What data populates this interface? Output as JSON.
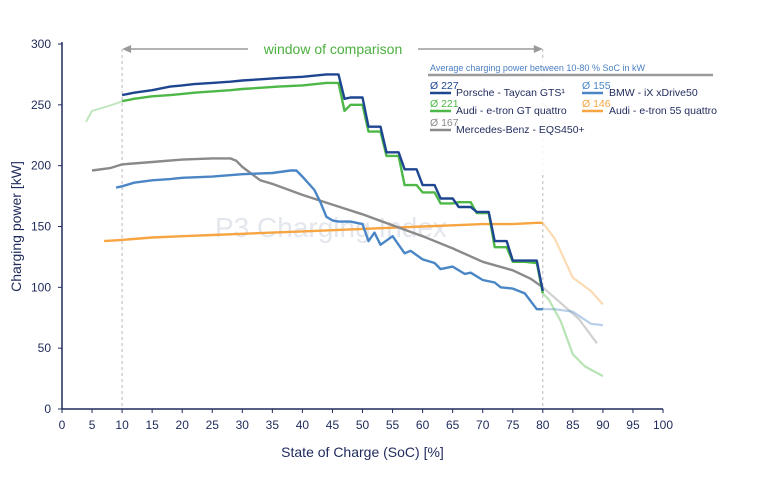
{
  "chart_data": {
    "type": "line",
    "xlabel": "State of Charge (SoC) [%]",
    "ylabel": "Charging power [kW]",
    "xlim": [
      0,
      100
    ],
    "ylim": [
      0,
      300
    ],
    "xticks": [
      0,
      5,
      10,
      15,
      20,
      25,
      30,
      35,
      40,
      45,
      50,
      55,
      60,
      65,
      70,
      75,
      80,
      85,
      90,
      95,
      100
    ],
    "yticks": [
      0,
      50,
      100,
      150,
      200,
      250,
      300
    ],
    "grid": false,
    "legend_placement": "top-right",
    "legend_header": "Average charging power between 10-80 % SoC in kW",
    "window_label": "window of comparison",
    "window_range": [
      10,
      80
    ],
    "watermark": "P3 Charging Index",
    "series": [
      {
        "name": "Porsche - Taycan GTS¹",
        "avg": "Ø 227",
        "color": "#1e4690",
        "x": [
          10,
          12,
          15,
          18,
          20,
          22,
          25,
          28,
          30,
          33,
          36,
          40,
          44,
          46,
          47,
          48,
          50,
          51,
          53,
          54,
          56,
          57,
          59,
          60,
          62,
          63,
          65,
          66,
          68,
          69,
          71,
          72,
          74,
          75,
          77,
          79,
          80
        ],
        "y": [
          258,
          260,
          262,
          265,
          266,
          267,
          268,
          269,
          270,
          271,
          272,
          273,
          275,
          275,
          255,
          256,
          256,
          232,
          232,
          211,
          211,
          197,
          197,
          184,
          184,
          173,
          173,
          166,
          166,
          162,
          162,
          138,
          138,
          122,
          122,
          122,
          97
        ]
      },
      {
        "name": "Audi - e-tron GT quattro",
        "avg": "Ø 221",
        "color": "#4db847",
        "x": [
          10,
          12,
          15,
          18,
          20,
          22,
          25,
          28,
          30,
          33,
          36,
          40,
          44,
          46,
          47,
          48,
          50,
          51,
          53,
          54,
          56,
          57,
          59,
          60,
          62,
          63,
          65,
          66,
          68,
          69,
          71,
          72,
          74,
          75,
          77,
          79,
          80,
          81,
          83,
          85,
          87,
          90
        ],
        "y": [
          253,
          255,
          257,
          258,
          259,
          260,
          261,
          262,
          263,
          264,
          265,
          266,
          268,
          268,
          245,
          250,
          250,
          228,
          228,
          208,
          208,
          184,
          184,
          178,
          178,
          169,
          169,
          170,
          170,
          161,
          161,
          133,
          133,
          121,
          121,
          120,
          95,
          90,
          72,
          45,
          35,
          27
        ]
      },
      {
        "name": "BMW - iX xDrive50",
        "avg": "Ø 155",
        "color": "#4a86c5",
        "x": [
          9,
          10,
          12,
          15,
          18,
          20,
          25,
          30,
          35,
          38,
          39,
          40,
          42,
          43,
          44,
          45,
          46,
          48,
          50,
          51,
          52,
          53,
          55,
          57,
          58,
          60,
          62,
          63,
          65,
          67,
          68,
          70,
          72,
          73,
          75,
          77,
          79,
          80,
          82,
          85,
          88,
          90
        ],
        "y": [
          182,
          183,
          186,
          188,
          189,
          190,
          191,
          193,
          194,
          196,
          196,
          191,
          180,
          170,
          158,
          155,
          154,
          154,
          152,
          138,
          145,
          135,
          142,
          128,
          130,
          123,
          120,
          115,
          117,
          111,
          112,
          106,
          104,
          100,
          99,
          95,
          82,
          82,
          82,
          80,
          70,
          69
        ]
      },
      {
        "name": "Audi - e-tron 55 quattro",
        "avg": "Ø 146",
        "color": "#f6a542",
        "x": [
          7,
          10,
          15,
          20,
          25,
          30,
          35,
          40,
          45,
          50,
          55,
          60,
          65,
          70,
          75,
          79,
          80,
          82,
          85,
          88,
          90
        ],
        "y": [
          138,
          139,
          141,
          142,
          143,
          144,
          145,
          146,
          147,
          148,
          149,
          150,
          151,
          152,
          152,
          153,
          153,
          140,
          108,
          97,
          86
        ]
      },
      {
        "name": "Mercedes-Benz - EQS450+",
        "avg": "Ø 167",
        "color": "#8a8a8a",
        "x": [
          5,
          8,
          10,
          15,
          20,
          25,
          28,
          29,
          30,
          33,
          35,
          40,
          45,
          50,
          55,
          60,
          65,
          70,
          75,
          78,
          80,
          83,
          86,
          89
        ],
        "y": [
          196,
          198,
          201,
          203,
          205,
          206,
          206,
          204,
          199,
          188,
          185,
          176,
          168,
          160,
          151,
          142,
          132,
          121,
          114,
          107,
          100,
          87,
          74,
          54
        ]
      }
    ],
    "faded_extensions": [
      {
        "color": "#4db847",
        "x": [
          4,
          5,
          7,
          9,
          10
        ],
        "y": [
          236,
          245,
          248,
          251,
          253
        ]
      }
    ]
  }
}
